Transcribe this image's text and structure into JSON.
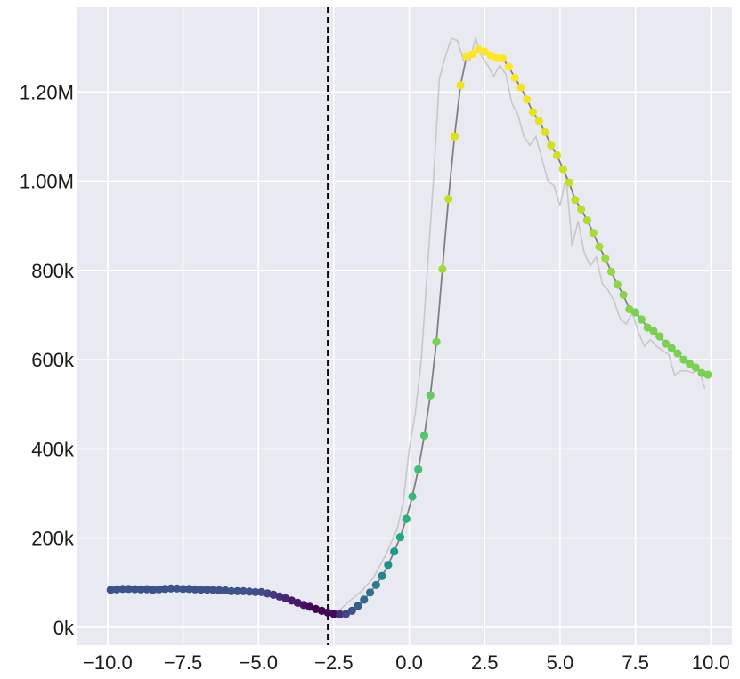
{
  "chart_data": {
    "type": "scatter",
    "title": "",
    "xlabel": "",
    "ylabel": "",
    "xlim": [
      -11,
      10.7
    ],
    "ylim": [
      -40000,
      1390000
    ],
    "grid": true,
    "background": "#e9e9f1",
    "colormap": "viridis",
    "vertical_line": {
      "x": -2.7,
      "style": "dashed",
      "color": "#000000"
    },
    "x_ticks": [
      {
        "value": -10.0,
        "label": "−10.0"
      },
      {
        "value": -7.5,
        "label": "−7.5"
      },
      {
        "value": -5.0,
        "label": "−5.0"
      },
      {
        "value": -2.5,
        "label": "−2.5"
      },
      {
        "value": 0.0,
        "label": "0.0"
      },
      {
        "value": 2.5,
        "label": "2.5"
      },
      {
        "value": 5.0,
        "label": "5.0"
      },
      {
        "value": 7.5,
        "label": "7.5"
      },
      {
        "value": 10.0,
        "label": "10.0"
      }
    ],
    "y_ticks": [
      {
        "value": 0,
        "label": "0k"
      },
      {
        "value": 200000,
        "label": "200k"
      },
      {
        "value": 400000,
        "label": "400k"
      },
      {
        "value": 600000,
        "label": "600k"
      },
      {
        "value": 800000,
        "label": "800k"
      },
      {
        "value": 1000000,
        "label": "1.00M"
      },
      {
        "value": 1200000,
        "label": "1.20M"
      }
    ],
    "series": [
      {
        "kind": "raw-line",
        "color": "#c8c8c8",
        "points": [
          [
            -10.0,
            84000
          ],
          [
            -9.6,
            86000
          ],
          [
            -9.2,
            85000
          ],
          [
            -8.8,
            85000
          ],
          [
            -8.4,
            84000
          ],
          [
            -8.0,
            86000
          ],
          [
            -7.6,
            87000
          ],
          [
            -7.2,
            86000
          ],
          [
            -6.8,
            85000
          ],
          [
            -6.4,
            84000
          ],
          [
            -6.0,
            83000
          ],
          [
            -5.6,
            81000
          ],
          [
            -5.2,
            80000
          ],
          [
            -4.8,
            76000
          ],
          [
            -4.4,
            68000
          ],
          [
            -4.0,
            56000
          ],
          [
            -3.6,
            47000
          ],
          [
            -3.2,
            38000
          ],
          [
            -2.8,
            30000
          ],
          [
            -2.4,
            32000
          ],
          [
            -2.0,
            58000
          ],
          [
            -1.6,
            80000
          ],
          [
            -1.2,
            110000
          ],
          [
            -0.8,
            160000
          ],
          [
            -0.4,
            220000
          ],
          [
            -0.2,
            280000
          ],
          [
            0.0,
            400000
          ],
          [
            0.2,
            480000
          ],
          [
            0.4,
            600000
          ],
          [
            0.6,
            800000
          ],
          [
            0.8,
            1000000
          ],
          [
            1.0,
            1230000
          ],
          [
            1.2,
            1280000
          ],
          [
            1.4,
            1320000
          ],
          [
            1.6,
            1315000
          ],
          [
            1.8,
            1270000
          ],
          [
            2.0,
            1270000
          ],
          [
            2.2,
            1320000
          ],
          [
            2.4,
            1280000
          ],
          [
            2.6,
            1260000
          ],
          [
            2.8,
            1235000
          ],
          [
            3.0,
            1260000
          ],
          [
            3.2,
            1240000
          ],
          [
            3.4,
            1175000
          ],
          [
            3.6,
            1150000
          ],
          [
            3.8,
            1100000
          ],
          [
            4.0,
            1080000
          ],
          [
            4.2,
            1100000
          ],
          [
            4.4,
            1050000
          ],
          [
            4.6,
            1000000
          ],
          [
            4.8,
            990000
          ],
          [
            5.0,
            945000
          ],
          [
            5.2,
            1010000
          ],
          [
            5.4,
            855000
          ],
          [
            5.6,
            910000
          ],
          [
            5.8,
            840000
          ],
          [
            6.0,
            810000
          ],
          [
            6.2,
            830000
          ],
          [
            6.4,
            770000
          ],
          [
            6.6,
            755000
          ],
          [
            6.8,
            730000
          ],
          [
            7.0,
            690000
          ],
          [
            7.2,
            680000
          ],
          [
            7.4,
            705000
          ],
          [
            7.6,
            660000
          ],
          [
            7.8,
            630000
          ],
          [
            8.0,
            645000
          ],
          [
            8.2,
            630000
          ],
          [
            8.4,
            620000
          ],
          [
            8.6,
            612000
          ],
          [
            8.8,
            565000
          ],
          [
            9.0,
            575000
          ],
          [
            9.2,
            575000
          ],
          [
            9.4,
            570000
          ],
          [
            9.6,
            580000
          ],
          [
            9.8,
            535000
          ]
        ]
      },
      {
        "kind": "smoothed-line",
        "color": "#808080",
        "points": [
          [
            -9.9,
            84000
          ],
          [
            -9.7,
            85000
          ],
          [
            -9.5,
            86000
          ],
          [
            -9.3,
            86000
          ],
          [
            -9.1,
            85500
          ],
          [
            -8.9,
            85000
          ],
          [
            -8.7,
            85500
          ],
          [
            -8.5,
            84000
          ],
          [
            -8.3,
            85000
          ],
          [
            -8.1,
            86000
          ],
          [
            -7.9,
            87000
          ],
          [
            -7.7,
            87000
          ],
          [
            -7.5,
            86000
          ],
          [
            -7.3,
            86000
          ],
          [
            -7.1,
            85000
          ],
          [
            -6.9,
            84500
          ],
          [
            -6.7,
            84500
          ],
          [
            -6.5,
            84000
          ],
          [
            -6.3,
            83000
          ],
          [
            -6.1,
            83000
          ],
          [
            -5.9,
            81000
          ],
          [
            -5.7,
            81000
          ],
          [
            -5.5,
            81000
          ],
          [
            -5.3,
            80000
          ],
          [
            -5.1,
            79000
          ],
          [
            -4.9,
            79000
          ],
          [
            -4.7,
            76000
          ],
          [
            -4.5,
            73000
          ],
          [
            -4.3,
            69000
          ],
          [
            -4.1,
            65000
          ],
          [
            -3.9,
            60000
          ],
          [
            -3.7,
            55000
          ],
          [
            -3.5,
            50000
          ],
          [
            -3.3,
            46000
          ],
          [
            -3.1,
            41000
          ],
          [
            -2.9,
            37000
          ],
          [
            -2.7,
            33000
          ],
          [
            -2.5,
            30000
          ],
          [
            -2.3,
            29000
          ],
          [
            -2.1,
            30000
          ],
          [
            -1.9,
            37000
          ],
          [
            -1.7,
            48000
          ],
          [
            -1.5,
            62000
          ],
          [
            -1.3,
            78000
          ],
          [
            -1.1,
            95000
          ],
          [
            -0.9,
            115000
          ],
          [
            -0.7,
            140000
          ],
          [
            -0.5,
            170000
          ],
          [
            -0.3,
            202000
          ],
          [
            -0.1,
            243000
          ],
          [
            0.1,
            293000
          ],
          [
            0.3,
            354000
          ],
          [
            0.5,
            430000
          ],
          [
            0.7,
            520000
          ],
          [
            0.9,
            640000
          ],
          [
            1.1,
            803000
          ],
          [
            1.3,
            960000
          ],
          [
            1.5,
            1100000
          ],
          [
            1.7,
            1215000
          ],
          [
            1.9,
            1280000
          ],
          [
            2.1,
            1285000
          ],
          [
            2.3,
            1295000
          ],
          [
            2.5,
            1290000
          ],
          [
            2.7,
            1282000
          ],
          [
            2.9,
            1276000
          ],
          [
            3.1,
            1275000
          ],
          [
            3.3,
            1256000
          ],
          [
            3.5,
            1232000
          ],
          [
            3.7,
            1210000
          ],
          [
            3.9,
            1183000
          ],
          [
            4.1,
            1155000
          ],
          [
            4.3,
            1135000
          ],
          [
            4.5,
            1110000
          ],
          [
            4.7,
            1080000
          ],
          [
            4.9,
            1058000
          ],
          [
            5.1,
            1027000
          ],
          [
            5.3,
            997000
          ],
          [
            5.5,
            958000
          ],
          [
            5.7,
            937000
          ],
          [
            5.9,
            912000
          ],
          [
            6.1,
            884000
          ],
          [
            6.3,
            853000
          ],
          [
            6.5,
            827000
          ],
          [
            6.7,
            797000
          ],
          [
            6.9,
            768000
          ],
          [
            7.1,
            745000
          ],
          [
            7.3,
            713000
          ],
          [
            7.5,
            706000
          ],
          [
            7.7,
            690000
          ],
          [
            7.9,
            672000
          ],
          [
            8.1,
            664000
          ],
          [
            8.3,
            652000
          ],
          [
            8.5,
            636000
          ],
          [
            8.7,
            626000
          ],
          [
            8.9,
            614000
          ],
          [
            9.1,
            600000
          ],
          [
            9.3,
            591000
          ],
          [
            9.5,
            582000
          ],
          [
            9.7,
            570000
          ],
          [
            9.9,
            566000
          ]
        ]
      },
      {
        "kind": "points",
        "colors": [
          "#3b528b",
          "#3b528b",
          "#3b528b",
          "#3b528b",
          "#3b528b",
          "#3b528b",
          "#3b528b",
          "#3b528b",
          "#3b528b",
          "#3b528b",
          "#3b528b",
          "#3b528b",
          "#3b528b",
          "#3b528b",
          "#3b528b",
          "#3b528b",
          "#3b528b",
          "#3b528b",
          "#3b528b",
          "#3b528b",
          "#3b528b",
          "#3b528b",
          "#3b528b",
          "#3b528b",
          "#3b528b",
          "#3e4a89",
          "#414487",
          "#453781",
          "#472d7b",
          "#482475",
          "#481a6c",
          "#48186a",
          "#471164",
          "#46085c",
          "#440154",
          "#440154",
          "#450559",
          "#46085c",
          "#472d7b",
          "#414487",
          "#3b528b",
          "#355f8d",
          "#2f6b8e",
          "#2c728e",
          "#287d8e",
          "#25848e",
          "#21918c",
          "#1f9a8a",
          "#22a884",
          "#2ab07f",
          "#35b779",
          "#42be71",
          "#54c568",
          "#65cb5e",
          "#7ad151",
          "#a2da37",
          "#c0df25",
          "#dde318",
          "#f1e51d",
          "#fde725",
          "#fde725",
          "#fde725",
          "#fde725",
          "#fde725",
          "#fde725",
          "#fde725",
          "#fde725",
          "#fde725",
          "#f1e51d",
          "#f1e51d",
          "#e6e419",
          "#e6e419",
          "#dde318",
          "#d5e21a",
          "#d5e21a",
          "#c8e020",
          "#c0df25",
          "#bddf26",
          "#b5de2b",
          "#addc30",
          "#a8db34",
          "#a2da37",
          "#9bd93c",
          "#95d840",
          "#8ed645",
          "#86d549",
          "#86d549",
          "#7ad151",
          "#7ad151",
          "#7ad151",
          "#7ad151",
          "#7ad151",
          "#7ad151",
          "#7ad151",
          "#7ad151",
          "#7ad151",
          "#7ad151",
          "#7ad151",
          "#7ad151",
          "#7ad151"
        ]
      }
    ]
  }
}
